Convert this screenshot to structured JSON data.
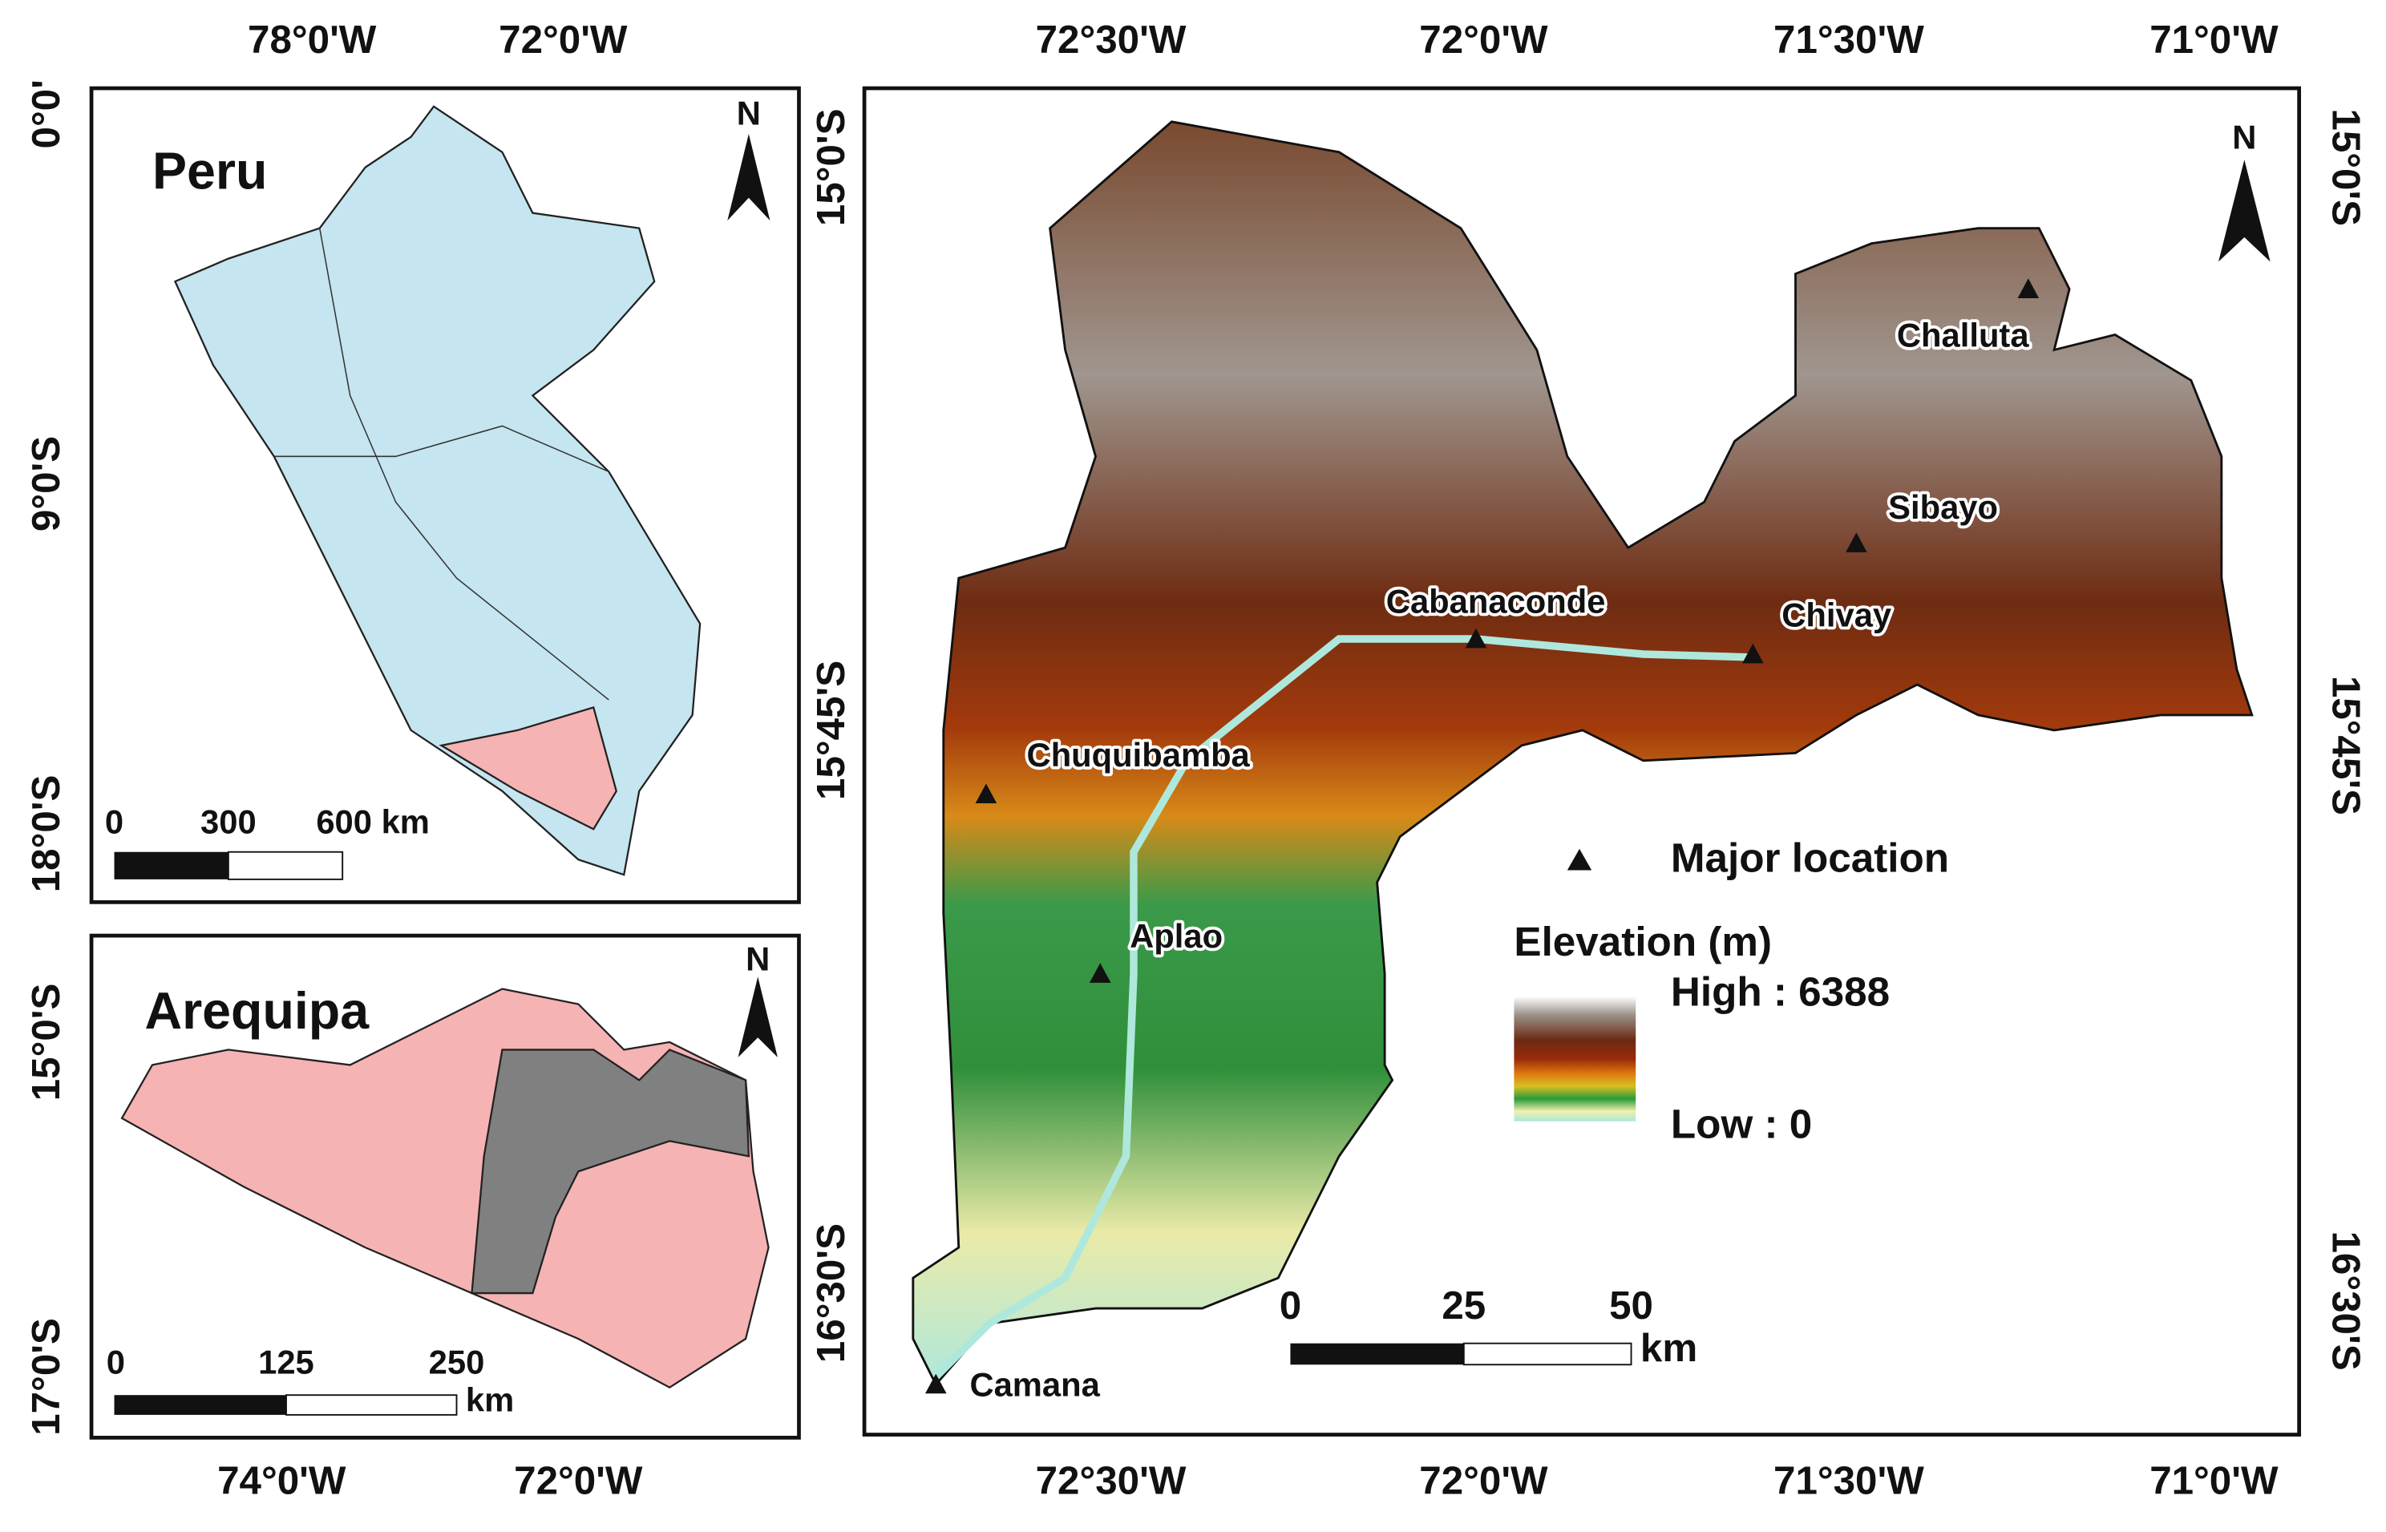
{
  "peru_map": {
    "title": "Peru",
    "top_labels": [
      "78°0'W",
      "72°0'W"
    ],
    "left_labels": [
      "0°0'",
      "9°0'S",
      "18°0'S"
    ],
    "north": "N",
    "scale": [
      "0",
      "300",
      "600 km"
    ]
  },
  "arequipa_map": {
    "title": "Arequipa",
    "left_labels": [
      "15°0'S",
      "17°0'S"
    ],
    "bottom_labels": [
      "74°0'W",
      "72°0'W"
    ],
    "north": "N",
    "scale": [
      "0",
      "125",
      "250"
    ],
    "scale_unit": "km"
  },
  "main_map": {
    "top_labels": [
      "72°30'W",
      "72°0'W",
      "71°30'W",
      "71°0'W"
    ],
    "bottom_labels": [
      "72°30'W",
      "72°0'W",
      "71°30'W",
      "71°0'W"
    ],
    "left_labels": [
      "15°0'S",
      "15°45'S",
      "16°30'S"
    ],
    "right_labels": [
      "15°0'S",
      "15°45'S",
      "16°30'S"
    ],
    "north": "N",
    "places": [
      "Challuta",
      "Sibayo",
      "Cabanaconde",
      "Chivay",
      "Chuquibamba",
      "Aplao",
      "Camana"
    ],
    "scale": [
      "0",
      "25",
      "50"
    ],
    "scale_unit": "km",
    "legend": {
      "point": "Major location",
      "title": "Elevation (m)",
      "high": "High : 6388",
      "low": "Low : 0"
    }
  }
}
